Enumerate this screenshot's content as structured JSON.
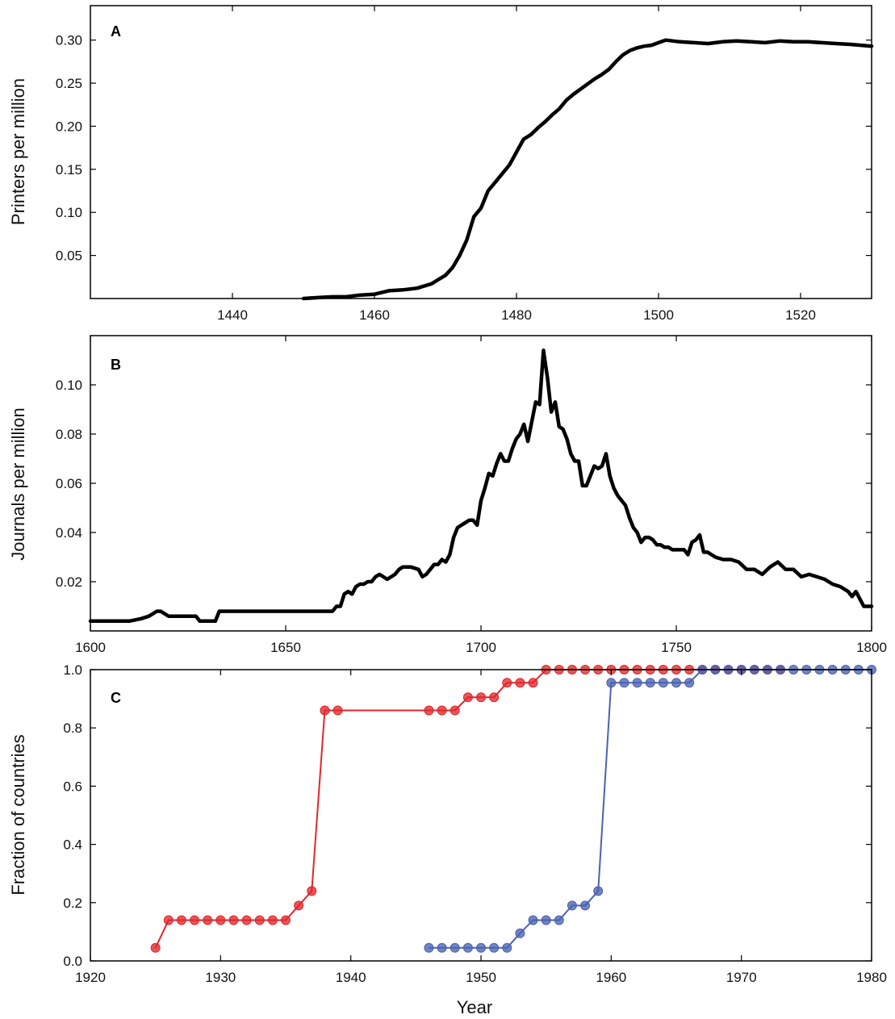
{
  "chart_data": [
    {
      "type": "line",
      "panel_label": "A",
      "ylabel": "Printers per million",
      "xlabel": "",
      "xlim": [
        1420,
        1530
      ],
      "ylim": [
        0,
        0.34
      ],
      "xticks": [
        "1440",
        "1460",
        "1480",
        "1500",
        "1520"
      ],
      "yticks": [
        "0.05",
        "0.10",
        "0.15",
        "0.20",
        "0.25",
        "0.30"
      ],
      "grid": false,
      "series": [
        {
          "color": "#000000",
          "x": [
            1450,
            1452,
            1454,
            1456,
            1458,
            1460,
            1462,
            1464,
            1466,
            1468,
            1469,
            1470,
            1471,
            1472,
            1473,
            1474,
            1475,
            1476,
            1477,
            1478,
            1479,
            1480,
            1481,
            1482,
            1483,
            1484,
            1485,
            1486,
            1487,
            1488,
            1489,
            1490,
            1491,
            1492,
            1493,
            1494,
            1495,
            1496,
            1497,
            1498,
            1499,
            1500,
            1501,
            1503,
            1505,
            1507,
            1509,
            1511,
            1513,
            1515,
            1517,
            1519,
            1521,
            1523,
            1525,
            1527,
            1530
          ],
          "y": [
            0.0,
            0.001,
            0.002,
            0.002,
            0.004,
            0.005,
            0.009,
            0.01,
            0.012,
            0.017,
            0.022,
            0.027,
            0.036,
            0.05,
            0.068,
            0.095,
            0.105,
            0.125,
            0.135,
            0.145,
            0.155,
            0.17,
            0.185,
            0.19,
            0.198,
            0.205,
            0.213,
            0.22,
            0.23,
            0.237,
            0.243,
            0.249,
            0.255,
            0.26,
            0.266,
            0.275,
            0.283,
            0.288,
            0.291,
            0.293,
            0.294,
            0.297,
            0.3,
            0.298,
            0.297,
            0.296,
            0.298,
            0.299,
            0.298,
            0.297,
            0.299,
            0.298,
            0.298,
            0.297,
            0.296,
            0.295,
            0.293
          ]
        }
      ]
    },
    {
      "type": "line",
      "panel_label": "B",
      "ylabel": "Journals per million",
      "xlabel": "",
      "xlim": [
        1600,
        1800
      ],
      "ylim": [
        0,
        0.12
      ],
      "xticks": [
        "1600",
        "1650",
        "1700",
        "1750",
        "1800"
      ],
      "yticks": [
        "0.02",
        "0.04",
        "0.06",
        "0.08",
        "0.10"
      ],
      "grid": false,
      "series": [
        {
          "color": "#000000",
          "x": [
            1600,
            1605,
            1610,
            1613,
            1615,
            1617,
            1618,
            1620,
            1625,
            1627,
            1628,
            1630,
            1632,
            1633,
            1640,
            1650,
            1655,
            1660,
            1662,
            1663,
            1664,
            1665,
            1666,
            1667,
            1668,
            1669,
            1670,
            1671,
            1672,
            1673,
            1674,
            1675,
            1676,
            1677,
            1678,
            1679,
            1680,
            1682,
            1684,
            1685,
            1686,
            1687,
            1688,
            1689,
            1690,
            1691,
            1692,
            1693,
            1694,
            1695,
            1696,
            1697,
            1698,
            1699,
            1700,
            1701,
            1702,
            1703,
            1704,
            1705,
            1706,
            1707,
            1708,
            1709,
            1710,
            1711,
            1712,
            1713,
            1714,
            1715,
            1716,
            1717,
            1718,
            1719,
            1720,
            1721,
            1722,
            1723,
            1724,
            1725,
            1726,
            1727,
            1728,
            1729,
            1730,
            1731,
            1732,
            1733,
            1734,
            1735,
            1736,
            1737,
            1738,
            1739,
            1740,
            1741,
            1742,
            1743,
            1744,
            1745,
            1746,
            1747,
            1748,
            1749,
            1750,
            1751,
            1752,
            1753,
            1754,
            1755,
            1756,
            1757,
            1758,
            1759,
            1760,
            1762,
            1764,
            1766,
            1768,
            1770,
            1772,
            1774,
            1775,
            1776,
            1778,
            1780,
            1782,
            1784,
            1786,
            1788,
            1790,
            1792,
            1794,
            1795,
            1796,
            1797,
            1798,
            1800
          ],
          "y": [
            0.004,
            0.004,
            0.004,
            0.005,
            0.006,
            0.008,
            0.008,
            0.006,
            0.006,
            0.006,
            0.004,
            0.004,
            0.004,
            0.008,
            0.008,
            0.008,
            0.008,
            0.008,
            0.008,
            0.01,
            0.01,
            0.015,
            0.016,
            0.015,
            0.018,
            0.019,
            0.019,
            0.02,
            0.02,
            0.022,
            0.023,
            0.022,
            0.021,
            0.022,
            0.023,
            0.025,
            0.026,
            0.026,
            0.025,
            0.022,
            0.023,
            0.025,
            0.027,
            0.027,
            0.029,
            0.028,
            0.031,
            0.038,
            0.042,
            0.043,
            0.044,
            0.045,
            0.045,
            0.043,
            0.053,
            0.058,
            0.064,
            0.063,
            0.068,
            0.072,
            0.069,
            0.069,
            0.074,
            0.078,
            0.08,
            0.084,
            0.077,
            0.085,
            0.093,
            0.092,
            0.114,
            0.103,
            0.089,
            0.093,
            0.083,
            0.082,
            0.078,
            0.072,
            0.069,
            0.069,
            0.059,
            0.059,
            0.063,
            0.067,
            0.066,
            0.067,
            0.072,
            0.063,
            0.058,
            0.055,
            0.053,
            0.051,
            0.046,
            0.042,
            0.04,
            0.036,
            0.038,
            0.038,
            0.037,
            0.035,
            0.035,
            0.034,
            0.034,
            0.033,
            0.033,
            0.033,
            0.033,
            0.031,
            0.036,
            0.037,
            0.039,
            0.032,
            0.032,
            0.031,
            0.03,
            0.029,
            0.029,
            0.028,
            0.025,
            0.025,
            0.023,
            0.026,
            0.027,
            0.028,
            0.025,
            0.025,
            0.022,
            0.023,
            0.022,
            0.021,
            0.019,
            0.018,
            0.016,
            0.014,
            0.016,
            0.013,
            0.01,
            0.01
          ]
        }
      ]
    },
    {
      "type": "line",
      "panel_label": "C",
      "ylabel": "Fraction of countries",
      "xlabel": "Year",
      "xlim": [
        1920,
        1980
      ],
      "ylim": [
        0,
        1.0
      ],
      "xticks": [
        "1920",
        "1930",
        "1940",
        "1950",
        "1960",
        "1970",
        "1980"
      ],
      "yticks": [
        "0.0",
        "0.2",
        "0.4",
        "0.6",
        "0.8",
        "1.0"
      ],
      "grid": false,
      "series": [
        {
          "color": "#e0262b",
          "x": [
            1925,
            1926,
            1927,
            1928,
            1929,
            1930,
            1931,
            1932,
            1933,
            1934,
            1935,
            1936,
            1937,
            1938,
            1939,
            1946,
            1947,
            1948,
            1949,
            1950,
            1951,
            1952,
            1953,
            1954,
            1955,
            1956,
            1957,
            1958,
            1959,
            1960,
            1961,
            1962,
            1963,
            1964,
            1965,
            1966,
            1967,
            1968,
            1969,
            1970,
            1971,
            1972,
            1973
          ],
          "y": [
            0.045,
            0.14,
            0.14,
            0.14,
            0.14,
            0.14,
            0.14,
            0.14,
            0.14,
            0.14,
            0.14,
            0.19,
            0.24,
            0.86,
            0.86,
            0.86,
            0.86,
            0.86,
            0.905,
            0.905,
            0.905,
            0.955,
            0.955,
            0.955,
            1.0,
            1.0,
            1.0,
            1.0,
            1.0,
            1.0,
            1.0,
            1.0,
            1.0,
            1.0,
            1.0,
            1.0,
            1.0,
            1.0,
            1.0,
            1.0,
            1.0,
            1.0,
            1.0
          ]
        },
        {
          "color": "#4a62b0",
          "x": [
            1946,
            1947,
            1948,
            1949,
            1950,
            1951,
            1952,
            1953,
            1954,
            1955,
            1956,
            1957,
            1958,
            1959,
            1960,
            1961,
            1962,
            1963,
            1964,
            1965,
            1966,
            1967,
            1968,
            1969,
            1970,
            1971,
            1972,
            1973,
            1974,
            1975,
            1976,
            1977,
            1978,
            1979,
            1980
          ],
          "y": [
            0.045,
            0.045,
            0.045,
            0.045,
            0.045,
            0.045,
            0.045,
            0.095,
            0.14,
            0.14,
            0.14,
            0.19,
            0.19,
            0.24,
            0.955,
            0.955,
            0.955,
            0.955,
            0.955,
            0.955,
            0.955,
            1.0,
            1.0,
            1.0,
            1.0,
            1.0,
            1.0,
            1.0,
            1.0,
            1.0,
            1.0,
            1.0,
            1.0,
            1.0,
            1.0
          ]
        }
      ]
    }
  ]
}
